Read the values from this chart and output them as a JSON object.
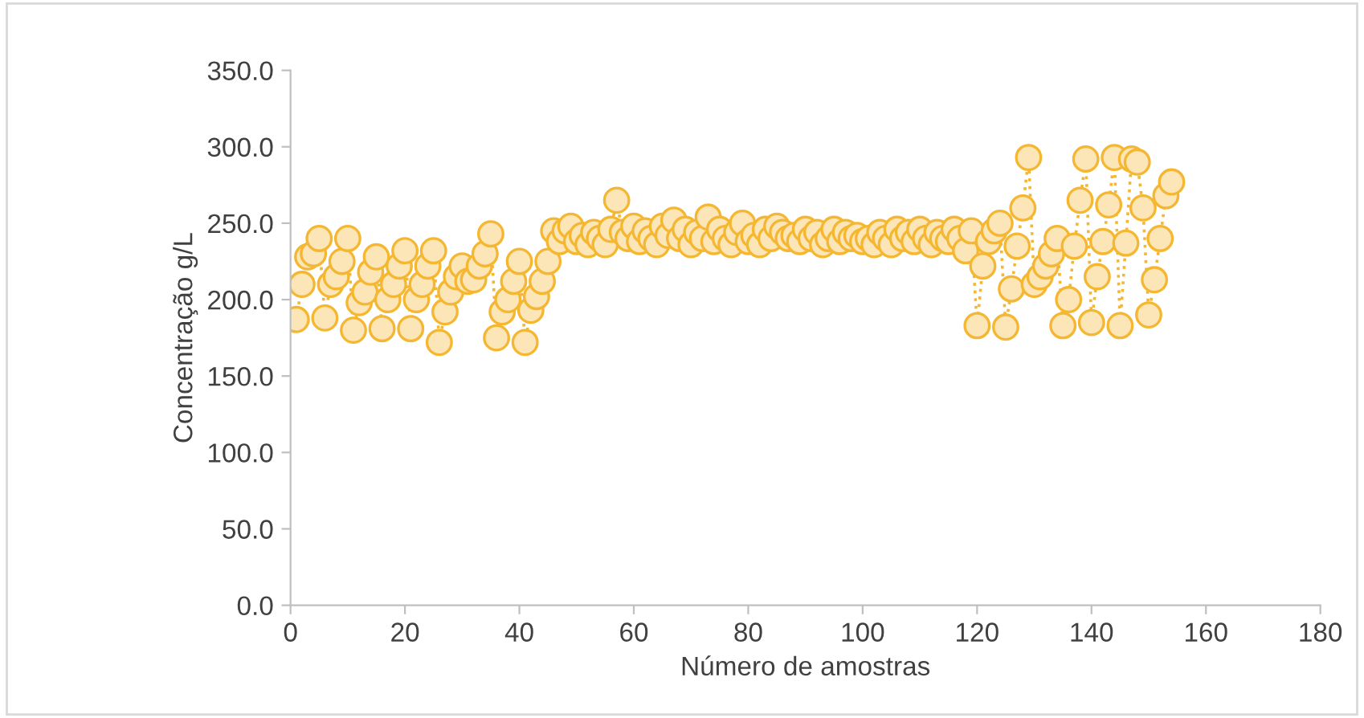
{
  "chart_data": {
    "type": "line",
    "xlabel": "Número de amostras",
    "ylabel": "Concentração g/L",
    "x": [
      1,
      2,
      3,
      4,
      5,
      6,
      7,
      8,
      9,
      10,
      11,
      12,
      13,
      14,
      15,
      16,
      17,
      18,
      19,
      20,
      21,
      22,
      23,
      24,
      25,
      26,
      27,
      28,
      29,
      30,
      31,
      32,
      33,
      34,
      35,
      36,
      37,
      38,
      39,
      40,
      41,
      42,
      43,
      44,
      45,
      46,
      47,
      48,
      49,
      50,
      51,
      52,
      53,
      54,
      55,
      56,
      57,
      58,
      59,
      60,
      61,
      62,
      63,
      64,
      65,
      66,
      67,
      68,
      69,
      70,
      71,
      72,
      73,
      74,
      75,
      76,
      77,
      78,
      79,
      80,
      81,
      82,
      83,
      84,
      85,
      86,
      87,
      88,
      89,
      90,
      91,
      92,
      93,
      94,
      95,
      96,
      97,
      98,
      99,
      100,
      101,
      102,
      103,
      104,
      105,
      106,
      107,
      108,
      109,
      110,
      111,
      112,
      113,
      114,
      115,
      116,
      117,
      118,
      119,
      120,
      121,
      122,
      123,
      124,
      125,
      126,
      127,
      128,
      129,
      130,
      131,
      132,
      133,
      134,
      135,
      136,
      137,
      138,
      139,
      140,
      141,
      142,
      143,
      144,
      145,
      146,
      147,
      148,
      149,
      150,
      151,
      152,
      153,
      154
    ],
    "series": [
      {
        "color": "#f5b731",
        "values": [
          187,
          210,
          228,
          230,
          240,
          188,
          210,
          215,
          225,
          240,
          180,
          198,
          205,
          218,
          228,
          181,
          200,
          210,
          222,
          232,
          181,
          200,
          210,
          222,
          232,
          172,
          192,
          205,
          215,
          222,
          212,
          213,
          222,
          230,
          243,
          175,
          192,
          200,
          212,
          225,
          172,
          193,
          202,
          212,
          225,
          245,
          238,
          245,
          248,
          238,
          242,
          236,
          244,
          240,
          236,
          246,
          265,
          244,
          240,
          248,
          238,
          245,
          240,
          236,
          248,
          242,
          252,
          240,
          246,
          236,
          244,
          240,
          254,
          238,
          246,
          240,
          236,
          244,
          250,
          238,
          242,
          236,
          246,
          240,
          248,
          244,
          240,
          242,
          238,
          246,
          240,
          244,
          236,
          240,
          246,
          238,
          244,
          240,
          242,
          238,
          240,
          236,
          244,
          240,
          236,
          246,
          240,
          244,
          238,
          246,
          240,
          236,
          244,
          240,
          238,
          246,
          240,
          232,
          245,
          183,
          222,
          238,
          245,
          250,
          182,
          207,
          235,
          260,
          293,
          210,
          215,
          222,
          230,
          240,
          183,
          200,
          235,
          265,
          292,
          185,
          215,
          238,
          262,
          293,
          183,
          237,
          292,
          290,
          260,
          190,
          213,
          240,
          268,
          277
        ]
      }
    ],
    "xlim": [
      0,
      180
    ],
    "xticks": [
      0,
      20,
      40,
      60,
      80,
      100,
      120,
      140,
      160,
      180
    ],
    "ylim": [
      0,
      350
    ],
    "yticks": [
      {
        "value": 0,
        "label": "0.0"
      },
      {
        "value": 50,
        "label": "50.0"
      },
      {
        "value": 100,
        "label": "100.0"
      },
      {
        "value": 150,
        "label": "150.0"
      },
      {
        "value": 200,
        "label": "200.0"
      },
      {
        "value": 250,
        "label": "250.0"
      },
      {
        "value": 300,
        "label": "300.0"
      },
      {
        "value": 350,
        "label": "350.0"
      }
    ],
    "marker": "circle",
    "line_style": "dotted",
    "grid": false,
    "legend": false
  }
}
